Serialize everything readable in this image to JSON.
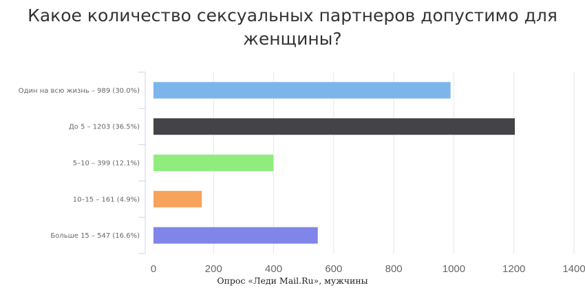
{
  "chart_data": {
    "type": "bar",
    "orientation": "horizontal",
    "title_lines": [
      "Какое количество сексуальных партнеров допустимо для",
      "женщины?"
    ],
    "categories": [
      "Один на всю жизнь – 989 (30.0%)",
      "До 5 – 1203 (36.5%)",
      "5–10 – 399 (12.1%)",
      "10–15 – 161 (4.9%)",
      "Больше 15 – 547 (16.6%)"
    ],
    "values": [
      989,
      1203,
      399,
      161,
      547
    ],
    "colors": [
      "#7cb5ec",
      "#434348",
      "#90ed7d",
      "#f7a35c",
      "#8085e9"
    ],
    "xlim": [
      0,
      1400
    ],
    "x_ticks": [
      "0",
      "200",
      "400",
      "600",
      "800",
      "1000",
      "1200",
      "1400"
    ],
    "grid": true,
    "xlabel": "",
    "ylabel": ""
  },
  "source": "Опрос «Леди Mail.Ru», мужчины"
}
